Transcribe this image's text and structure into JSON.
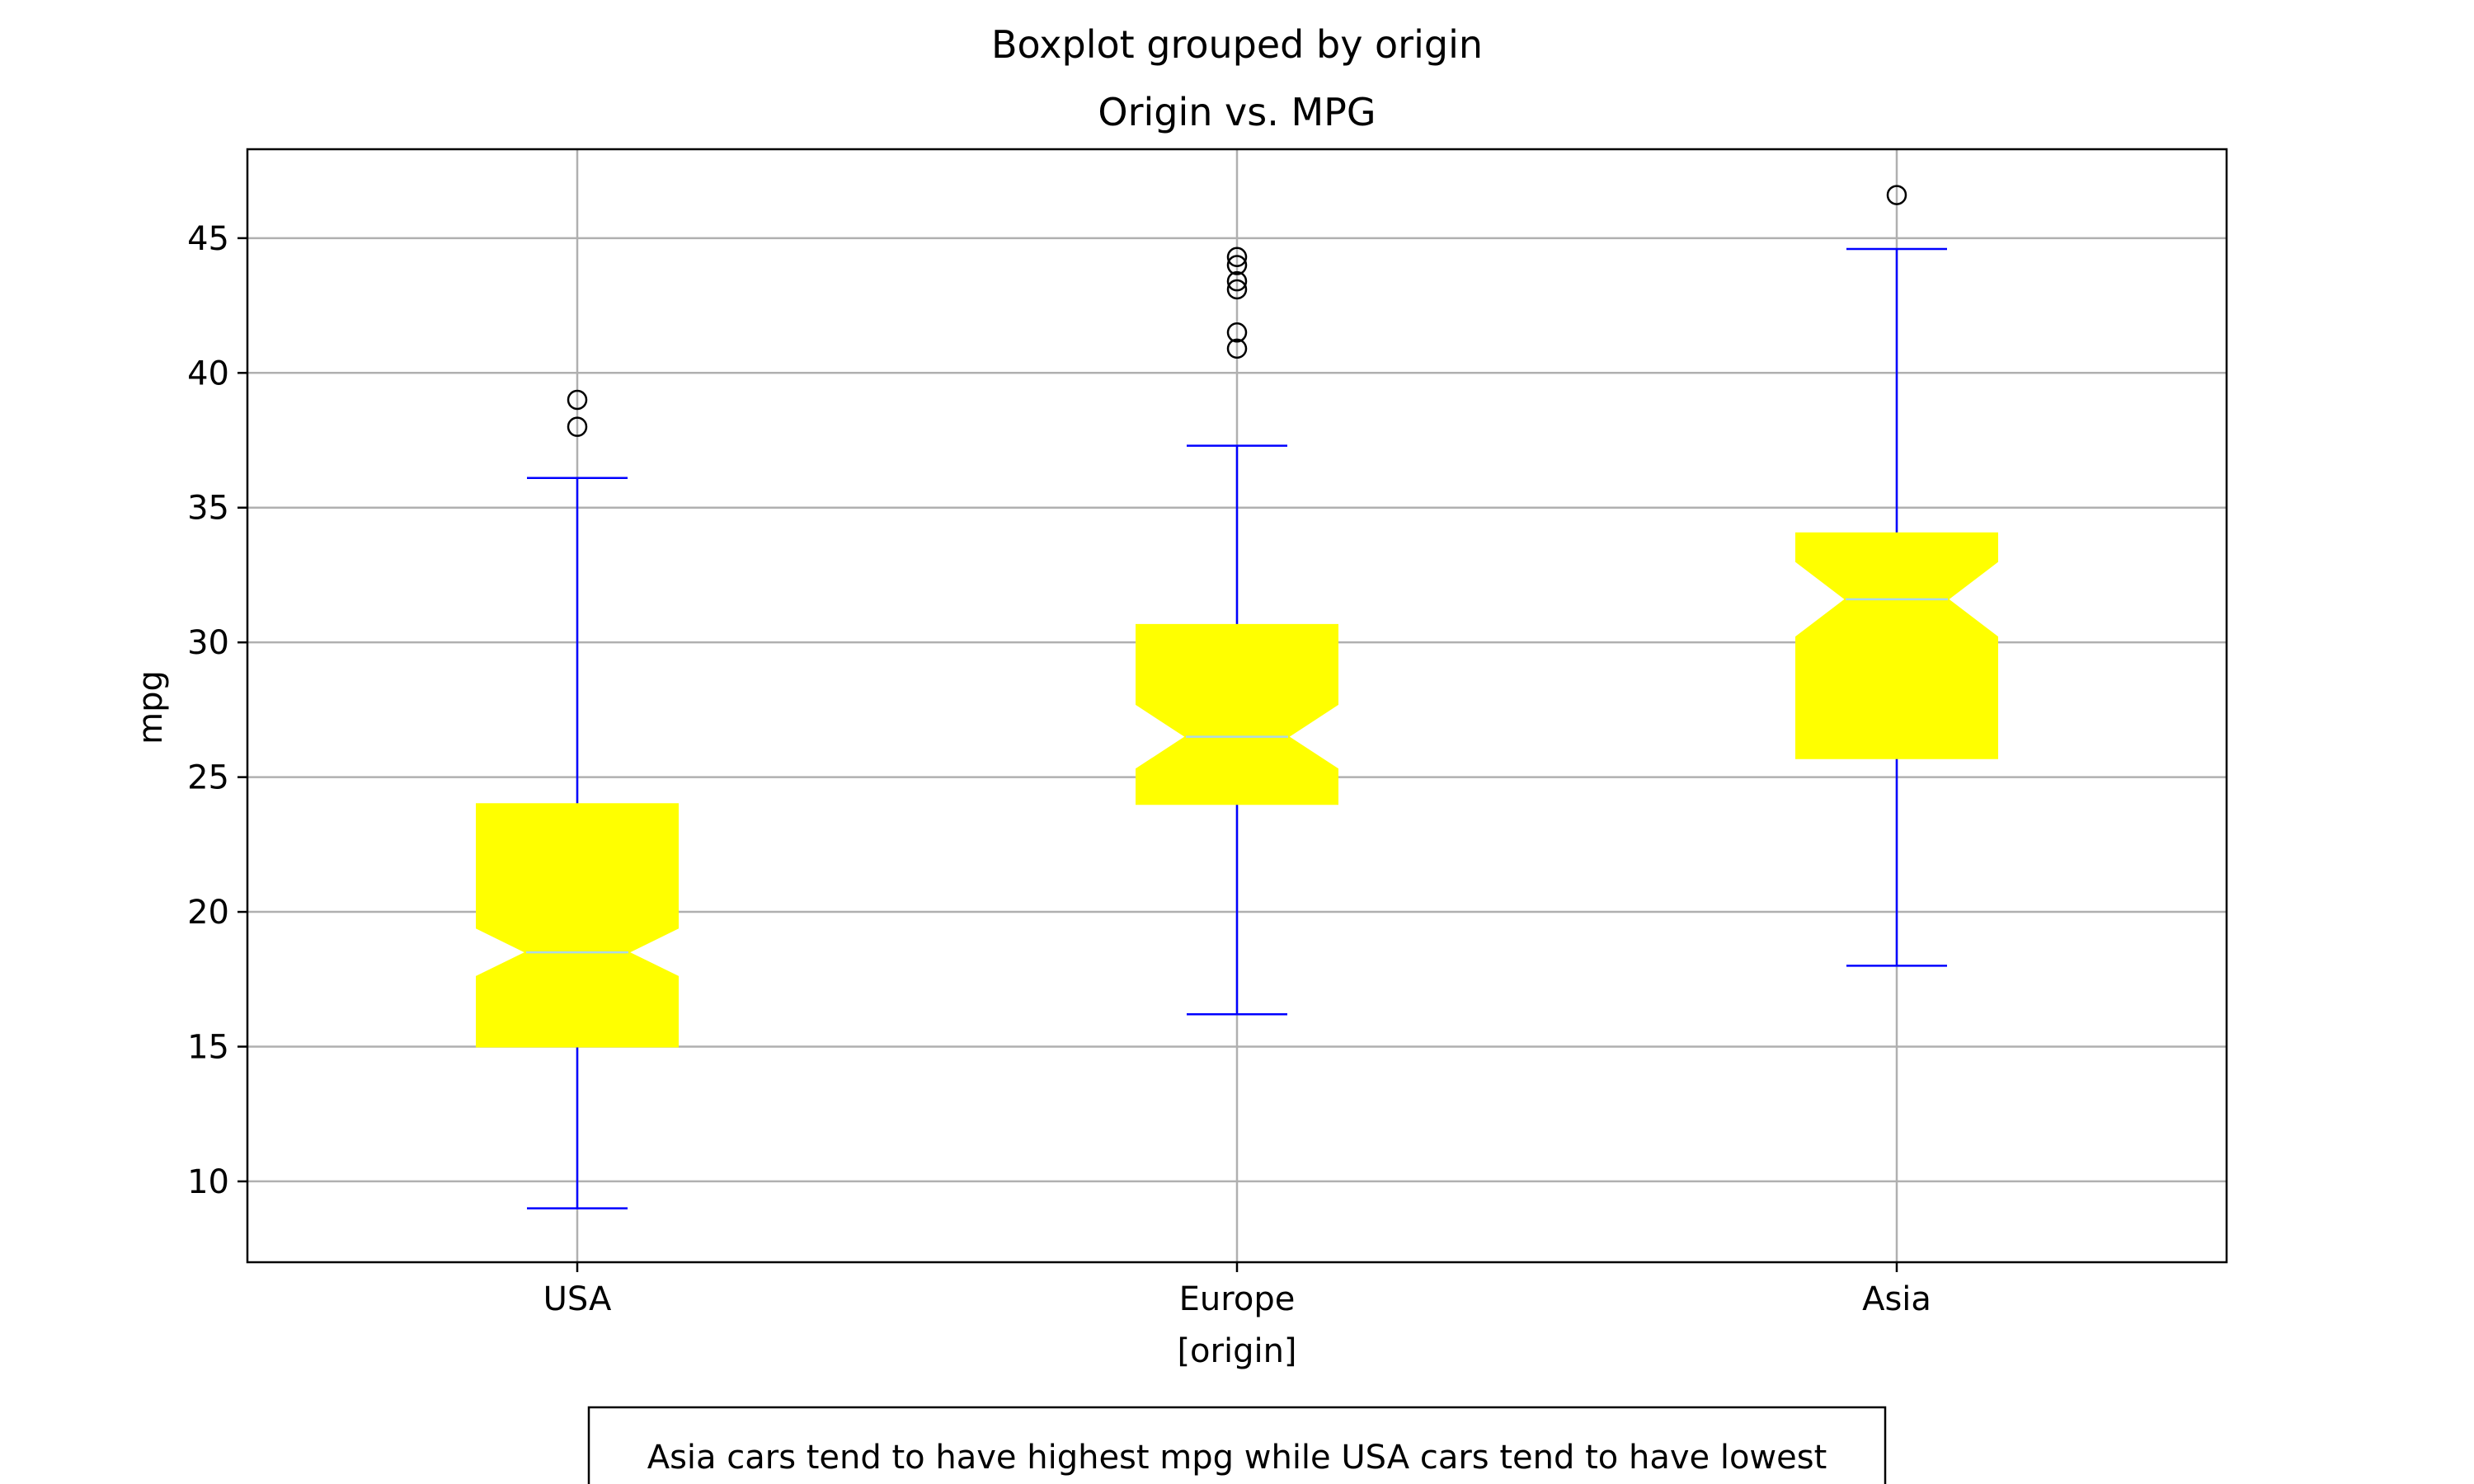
{
  "chart_data": {
    "type": "box",
    "suptitle": "Boxplot grouped by origin",
    "title": "Origin vs. MPG",
    "xlabel": "[origin]",
    "ylabel": "mpg",
    "ylim": [
      7,
      48.3
    ],
    "yticks": [
      10,
      15,
      20,
      25,
      30,
      35,
      40,
      45
    ],
    "grid": true,
    "notched": true,
    "categories": [
      "USA",
      "Europe",
      "Asia"
    ],
    "boxes": [
      {
        "category": "USA",
        "whislo": 9,
        "q1": 15,
        "median": 18.5,
        "q3": 24,
        "whishi": 36.1,
        "notch_lo": 17.6,
        "notch_hi": 19.4,
        "fliers": [
          38,
          39
        ]
      },
      {
        "category": "Europe",
        "whislo": 16.2,
        "q1": 24,
        "median": 26.5,
        "q3": 30.65,
        "whishi": 37.3,
        "notch_lo": 25.3,
        "notch_hi": 27.7,
        "fliers": [
          40.9,
          41.5,
          43.1,
          43.4,
          44,
          44.3
        ]
      },
      {
        "category": "Asia",
        "whislo": 18,
        "q1": 25.7,
        "median": 31.6,
        "q3": 34.05,
        "whishi": 44.6,
        "notch_lo": 30.2,
        "notch_hi": 33,
        "fliers": [
          46.6
        ]
      }
    ],
    "colors": {
      "box_fill": "#ffff00",
      "whisker": "#0000ff",
      "median": "#add8e6",
      "grid": "#b0b0b0",
      "flier_edge": "#000000"
    },
    "annotation": "Asia cars tend to have highest mpg while USA cars tend to have lowest"
  }
}
